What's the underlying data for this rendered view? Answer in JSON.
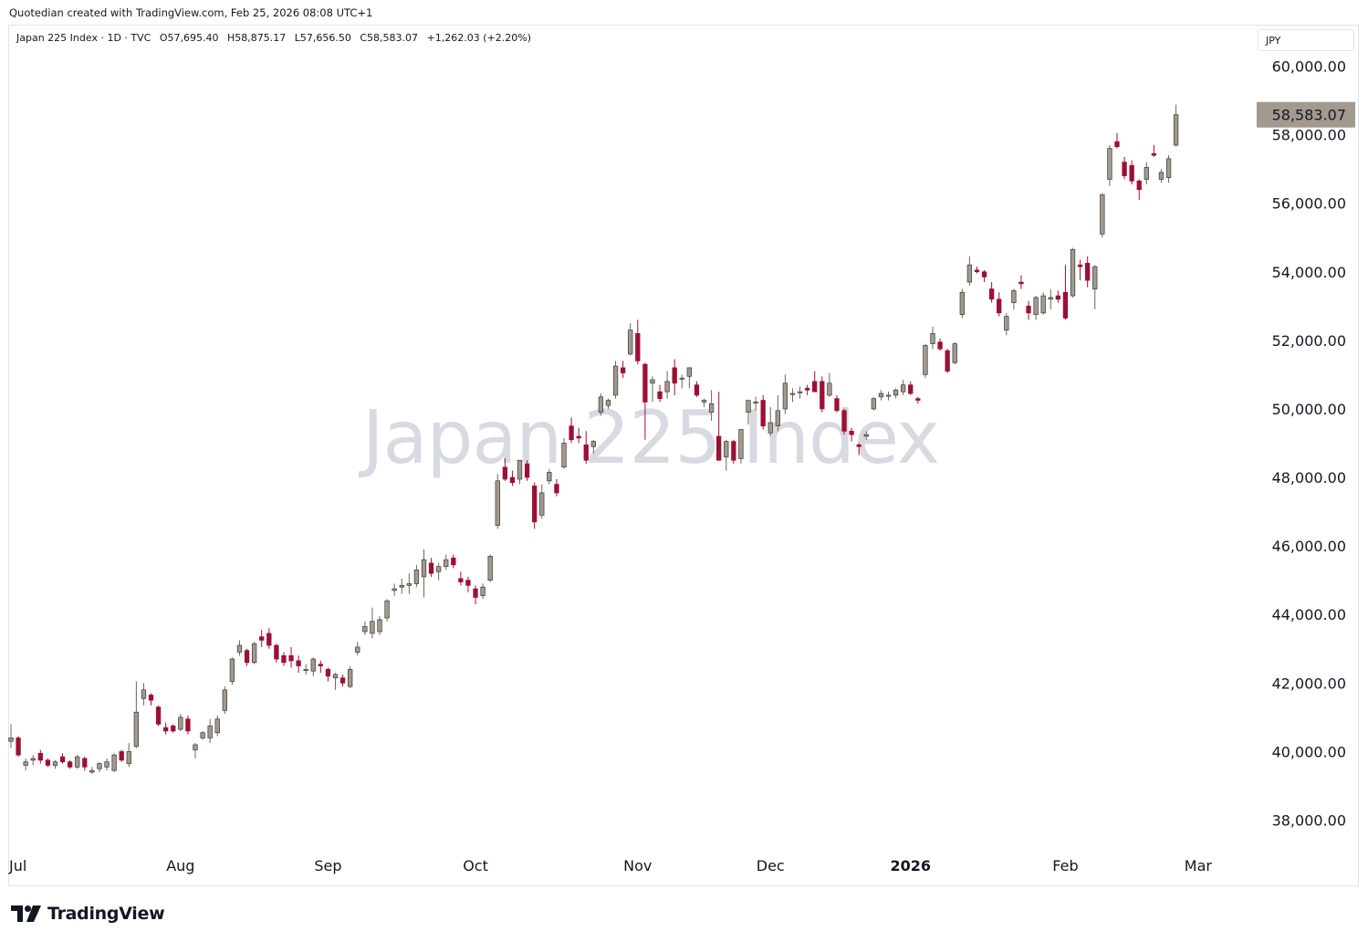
{
  "header": {
    "credit": "Quotedian created with TradingView.com, Feb 25, 2026 08:08 UTC+1"
  },
  "legend": {
    "symbol": "Japan 225 Index · 1D · TVC",
    "open": "O57,695.40",
    "high": "H58,875.17",
    "low": "L57,656.50",
    "close": "C58,583.07",
    "change": "+1,262.03 (+2.20%)"
  },
  "currency": "JPY",
  "watermark": "Japan 225 Index",
  "brand": {
    "name": "TradingView"
  },
  "colors": {
    "up": "#a29a8f",
    "down": "#9c1033",
    "last_price_bg": "#a29a8f",
    "axis_text": "#131722"
  },
  "chart_data": {
    "type": "candlestick",
    "y_axis": {
      "min": 37000,
      "max": 61000,
      "ticks": [
        38000,
        40000,
        42000,
        44000,
        46000,
        48000,
        50000,
        52000,
        54000,
        56000,
        58000,
        60000
      ],
      "tick_labels": [
        "38,000.00",
        "40,000.00",
        "42,000.00",
        "44,000.00",
        "46,000.00",
        "48,000.00",
        "50,000.00",
        "52,000.00",
        "54,000.00",
        "56,000.00",
        "58,000.00",
        "60,000.00"
      ]
    },
    "x_axis": {
      "labels": [
        {
          "label": "Jul",
          "bar": 0
        },
        {
          "label": "Aug",
          "bar": 23
        },
        {
          "label": "Sep",
          "bar": 43
        },
        {
          "label": "Oct",
          "bar": 63
        },
        {
          "label": "Nov",
          "bar": 85
        },
        {
          "label": "Dec",
          "bar": 103
        },
        {
          "label": "2026",
          "bar": 122
        },
        {
          "label": "Feb",
          "bar": 143
        },
        {
          "label": "Mar",
          "bar": 161
        }
      ]
    },
    "last_price": {
      "value": 58583.07,
      "label": "58,583.07"
    },
    "series": [
      {
        "open": 40300,
        "high": 40800,
        "low": 40100,
        "close": 40400
      },
      {
        "open": 40400,
        "high": 40450,
        "low": 39850,
        "close": 39900
      },
      {
        "open": 39600,
        "high": 39800,
        "low": 39450,
        "close": 39700
      },
      {
        "open": 39750,
        "high": 39900,
        "low": 39600,
        "close": 39800
      },
      {
        "open": 39950,
        "high": 40050,
        "low": 39650,
        "close": 39750
      },
      {
        "open": 39750,
        "high": 39800,
        "low": 39550,
        "close": 39600
      },
      {
        "open": 39600,
        "high": 39750,
        "low": 39500,
        "close": 39700
      },
      {
        "open": 39850,
        "high": 39950,
        "low": 39650,
        "close": 39700
      },
      {
        "open": 39700,
        "high": 39750,
        "low": 39500,
        "close": 39550
      },
      {
        "open": 39550,
        "high": 39900,
        "low": 39500,
        "close": 39850
      },
      {
        "open": 39800,
        "high": 39850,
        "low": 39450,
        "close": 39550
      },
      {
        "open": 39400,
        "high": 39550,
        "low": 39350,
        "close": 39450
      },
      {
        "open": 39500,
        "high": 39700,
        "low": 39400,
        "close": 39650
      },
      {
        "open": 39550,
        "high": 39800,
        "low": 39450,
        "close": 39700
      },
      {
        "open": 39450,
        "high": 39950,
        "low": 39400,
        "close": 39900
      },
      {
        "open": 40000,
        "high": 40050,
        "low": 39700,
        "close": 39750
      },
      {
        "open": 39650,
        "high": 40250,
        "low": 39550,
        "close": 40000
      },
      {
        "open": 40150,
        "high": 42050,
        "low": 40100,
        "close": 41150
      },
      {
        "open": 41550,
        "high": 42000,
        "low": 41350,
        "close": 41800
      },
      {
        "open": 41650,
        "high": 41700,
        "low": 41350,
        "close": 41500
      },
      {
        "open": 41300,
        "high": 41350,
        "low": 40750,
        "close": 40800
      },
      {
        "open": 40700,
        "high": 40850,
        "low": 40500,
        "close": 40600
      },
      {
        "open": 40750,
        "high": 40800,
        "low": 40550,
        "close": 40600
      },
      {
        "open": 40650,
        "high": 41100,
        "low": 40600,
        "close": 41000
      },
      {
        "open": 40950,
        "high": 41050,
        "low": 40500,
        "close": 40600
      },
      {
        "open": 40050,
        "high": 40250,
        "low": 39800,
        "close": 40200
      },
      {
        "open": 40400,
        "high": 40600,
        "low": 40350,
        "close": 40550
      },
      {
        "open": 40400,
        "high": 40950,
        "low": 40250,
        "close": 40750
      },
      {
        "open": 40550,
        "high": 41050,
        "low": 40450,
        "close": 40950
      },
      {
        "open": 41200,
        "high": 41900,
        "low": 41100,
        "close": 41800
      },
      {
        "open": 42050,
        "high": 42750,
        "low": 41950,
        "close": 42700
      },
      {
        "open": 42900,
        "high": 43250,
        "low": 42800,
        "close": 43100
      },
      {
        "open": 42950,
        "high": 43000,
        "low": 42500,
        "close": 42600
      },
      {
        "open": 42600,
        "high": 43200,
        "low": 42550,
        "close": 43150
      },
      {
        "open": 43350,
        "high": 43550,
        "low": 43050,
        "close": 43250
      },
      {
        "open": 43450,
        "high": 43600,
        "low": 43000,
        "close": 43100
      },
      {
        "open": 43100,
        "high": 43150,
        "low": 42600,
        "close": 42700
      },
      {
        "open": 42800,
        "high": 42900,
        "low": 42500,
        "close": 42600
      },
      {
        "open": 42800,
        "high": 43050,
        "low": 42450,
        "close": 42650
      },
      {
        "open": 42650,
        "high": 42800,
        "low": 42300,
        "close": 42500
      },
      {
        "open": 42400,
        "high": 42550,
        "low": 42250,
        "close": 42400
      },
      {
        "open": 42350,
        "high": 42750,
        "low": 42200,
        "close": 42700
      },
      {
        "open": 42550,
        "high": 42650,
        "low": 42300,
        "close": 42500
      },
      {
        "open": 42400,
        "high": 42450,
        "low": 42050,
        "close": 42200
      },
      {
        "open": 42150,
        "high": 42300,
        "low": 41800,
        "close": 42250
      },
      {
        "open": 42150,
        "high": 42250,
        "low": 41900,
        "close": 42000
      },
      {
        "open": 41900,
        "high": 42500,
        "low": 41850,
        "close": 42400
      },
      {
        "open": 42900,
        "high": 43200,
        "low": 42800,
        "close": 43050
      },
      {
        "open": 43500,
        "high": 43800,
        "low": 43400,
        "close": 43650
      },
      {
        "open": 43450,
        "high": 44200,
        "low": 43300,
        "close": 43800
      },
      {
        "open": 43500,
        "high": 43950,
        "low": 43400,
        "close": 43850
      },
      {
        "open": 43900,
        "high": 44450,
        "low": 43800,
        "close": 44400
      },
      {
        "open": 44700,
        "high": 44900,
        "low": 44550,
        "close": 44750
      },
      {
        "open": 44800,
        "high": 45050,
        "low": 44600,
        "close": 44850
      },
      {
        "open": 44850,
        "high": 45200,
        "low": 44600,
        "close": 44900
      },
      {
        "open": 44900,
        "high": 45450,
        "low": 44800,
        "close": 45300
      },
      {
        "open": 45100,
        "high": 45900,
        "low": 44500,
        "close": 45600
      },
      {
        "open": 45500,
        "high": 45650,
        "low": 45100,
        "close": 45200
      },
      {
        "open": 45250,
        "high": 45500,
        "low": 45000,
        "close": 45400
      },
      {
        "open": 45400,
        "high": 45750,
        "low": 45300,
        "close": 45600
      },
      {
        "open": 45650,
        "high": 45750,
        "low": 45350,
        "close": 45450
      },
      {
        "open": 45050,
        "high": 45250,
        "low": 44850,
        "close": 44950
      },
      {
        "open": 45000,
        "high": 45100,
        "low": 44650,
        "close": 44850
      },
      {
        "open": 44750,
        "high": 44850,
        "low": 44300,
        "close": 44500
      },
      {
        "open": 44550,
        "high": 44900,
        "low": 44450,
        "close": 44800
      },
      {
        "open": 45000,
        "high": 45750,
        "low": 44950,
        "close": 45700
      },
      {
        "open": 46600,
        "high": 48100,
        "low": 46500,
        "close": 47900
      },
      {
        "open": 48300,
        "high": 48550,
        "low": 47900,
        "close": 47950
      },
      {
        "open": 48000,
        "high": 48200,
        "low": 47750,
        "close": 47850
      },
      {
        "open": 47950,
        "high": 48500,
        "low": 47800,
        "close": 48500
      },
      {
        "open": 48400,
        "high": 48500,
        "low": 47900,
        "close": 48000
      },
      {
        "open": 47750,
        "high": 47850,
        "low": 46500,
        "close": 46700
      },
      {
        "open": 46900,
        "high": 47800,
        "low": 46800,
        "close": 47550
      },
      {
        "open": 47900,
        "high": 48250,
        "low": 47800,
        "close": 48150
      },
      {
        "open": 47800,
        "high": 47950,
        "low": 47450,
        "close": 47550
      },
      {
        "open": 48300,
        "high": 49150,
        "low": 48250,
        "close": 49000
      },
      {
        "open": 49500,
        "high": 49750,
        "low": 49000,
        "close": 49100
      },
      {
        "open": 49200,
        "high": 49450,
        "low": 49000,
        "close": 49150
      },
      {
        "open": 48950,
        "high": 49350,
        "low": 48400,
        "close": 48500
      },
      {
        "open": 48900,
        "high": 49100,
        "low": 48700,
        "close": 49050
      },
      {
        "open": 49900,
        "high": 50450,
        "low": 49800,
        "close": 50350
      },
      {
        "open": 50100,
        "high": 50300,
        "low": 50000,
        "close": 50250
      },
      {
        "open": 50400,
        "high": 51400,
        "low": 50300,
        "close": 51250
      },
      {
        "open": 51200,
        "high": 51400,
        "low": 50900,
        "close": 51050
      },
      {
        "open": 51600,
        "high": 52500,
        "low": 51550,
        "close": 52300
      },
      {
        "open": 52200,
        "high": 52600,
        "low": 51300,
        "close": 51400
      },
      {
        "open": 51300,
        "high": 51350,
        "low": 49100,
        "close": 50200
      },
      {
        "open": 50750,
        "high": 50950,
        "low": 50200,
        "close": 50850
      },
      {
        "open": 50500,
        "high": 50700,
        "low": 50200,
        "close": 50300
      },
      {
        "open": 50500,
        "high": 51100,
        "low": 50300,
        "close": 50800
      },
      {
        "open": 51200,
        "high": 51450,
        "low": 50400,
        "close": 50750
      },
      {
        "open": 50900,
        "high": 51000,
        "low": 50600,
        "close": 50900
      },
      {
        "open": 50950,
        "high": 51150,
        "low": 50600,
        "close": 51200
      },
      {
        "open": 50700,
        "high": 50800,
        "low": 50350,
        "close": 50400
      },
      {
        "open": 50200,
        "high": 50300,
        "low": 50050,
        "close": 50250
      },
      {
        "open": 49900,
        "high": 50550,
        "low": 49650,
        "close": 50150
      },
      {
        "open": 49200,
        "high": 50500,
        "low": 48700,
        "close": 48500
      },
      {
        "open": 48600,
        "high": 49100,
        "low": 48200,
        "close": 49050
      },
      {
        "open": 49050,
        "high": 49100,
        "low": 48400,
        "close": 48500
      },
      {
        "open": 48550,
        "high": 49350,
        "low": 48400,
        "close": 49400
      },
      {
        "open": 49900,
        "high": 50250,
        "low": 49550,
        "close": 50250
      },
      {
        "open": 50200,
        "high": 50350,
        "low": 49950,
        "close": 50200
      },
      {
        "open": 50250,
        "high": 50400,
        "low": 49400,
        "close": 49500
      },
      {
        "open": 49300,
        "high": 50050,
        "low": 49200,
        "close": 49600
      },
      {
        "open": 49500,
        "high": 50400,
        "low": 49350,
        "close": 49950
      },
      {
        "open": 50000,
        "high": 51000,
        "low": 49850,
        "close": 50750
      },
      {
        "open": 50450,
        "high": 50600,
        "low": 50200,
        "close": 50450
      },
      {
        "open": 50500,
        "high": 50650,
        "low": 50300,
        "close": 50500
      },
      {
        "open": 50600,
        "high": 50700,
        "low": 50400,
        "close": 50550
      },
      {
        "open": 50800,
        "high": 51100,
        "low": 50600,
        "close": 50500
      },
      {
        "open": 50800,
        "high": 50950,
        "low": 49900,
        "close": 50000
      },
      {
        "open": 50400,
        "high": 51050,
        "low": 50350,
        "close": 50750
      },
      {
        "open": 50300,
        "high": 50400,
        "low": 49900,
        "close": 49950
      },
      {
        "open": 49950,
        "high": 50000,
        "low": 49250,
        "close": 49350
      },
      {
        "open": 49350,
        "high": 49450,
        "low": 49050,
        "close": 49250
      },
      {
        "open": 48950,
        "high": 49000,
        "low": 48650,
        "close": 48900
      },
      {
        "open": 49200,
        "high": 49350,
        "low": 49100,
        "close": 49250
      },
      {
        "open": 50000,
        "high": 50350,
        "low": 49950,
        "close": 50300
      },
      {
        "open": 50350,
        "high": 50550,
        "low": 50250,
        "close": 50450
      },
      {
        "open": 50400,
        "high": 50500,
        "low": 50250,
        "close": 50400
      },
      {
        "open": 50400,
        "high": 50600,
        "low": 50300,
        "close": 50550
      },
      {
        "open": 50500,
        "high": 50850,
        "low": 50400,
        "close": 50700
      },
      {
        "open": 50700,
        "high": 50800,
        "low": 50400,
        "close": 50450
      },
      {
        "open": 50300,
        "high": 50350,
        "low": 50150,
        "close": 50250
      },
      {
        "open": 51000,
        "high": 51900,
        "low": 50900,
        "close": 51850
      },
      {
        "open": 51900,
        "high": 52400,
        "low": 51750,
        "close": 52200
      },
      {
        "open": 51950,
        "high": 52050,
        "low": 51700,
        "close": 51750
      },
      {
        "open": 51700,
        "high": 51750,
        "low": 51050,
        "close": 51100
      },
      {
        "open": 51350,
        "high": 51950,
        "low": 51300,
        "close": 51900
      },
      {
        "open": 52750,
        "high": 53500,
        "low": 52650,
        "close": 53400
      },
      {
        "open": 53700,
        "high": 54450,
        "low": 53600,
        "close": 54200
      },
      {
        "open": 54050,
        "high": 54150,
        "low": 53950,
        "close": 54000
      },
      {
        "open": 54000,
        "high": 54050,
        "low": 53700,
        "close": 53850
      },
      {
        "open": 53500,
        "high": 53700,
        "low": 53100,
        "close": 53200
      },
      {
        "open": 53200,
        "high": 53400,
        "low": 52700,
        "close": 52800
      },
      {
        "open": 52300,
        "high": 52800,
        "low": 52150,
        "close": 52700
      },
      {
        "open": 53100,
        "high": 53500,
        "low": 52900,
        "close": 53450
      },
      {
        "open": 53700,
        "high": 53900,
        "low": 53500,
        "close": 53650
      },
      {
        "open": 53000,
        "high": 53150,
        "low": 52600,
        "close": 52800
      },
      {
        "open": 52750,
        "high": 53300,
        "low": 52600,
        "close": 53250
      },
      {
        "open": 52800,
        "high": 53400,
        "low": 52750,
        "close": 53300
      },
      {
        "open": 53200,
        "high": 53500,
        "low": 52900,
        "close": 53250
      },
      {
        "open": 53300,
        "high": 53450,
        "low": 53100,
        "close": 53200
      },
      {
        "open": 53400,
        "high": 54200,
        "low": 52600,
        "close": 52650
      },
      {
        "open": 53300,
        "high": 54700,
        "low": 53250,
        "close": 54650
      },
      {
        "open": 54200,
        "high": 54350,
        "low": 53750,
        "close": 54150
      },
      {
        "open": 54250,
        "high": 54450,
        "low": 53550,
        "close": 53750
      },
      {
        "open": 53500,
        "high": 54200,
        "low": 52900,
        "close": 54150
      },
      {
        "open": 55100,
        "high": 56300,
        "low": 55000,
        "close": 56250
      },
      {
        "open": 56700,
        "high": 57700,
        "low": 56500,
        "close": 57600
      },
      {
        "open": 57800,
        "high": 58050,
        "low": 57600,
        "close": 57650
      },
      {
        "open": 57200,
        "high": 57350,
        "low": 56700,
        "close": 56800
      },
      {
        "open": 57100,
        "high": 57250,
        "low": 56550,
        "close": 56650
      },
      {
        "open": 56650,
        "high": 56700,
        "low": 56100,
        "close": 56400
      },
      {
        "open": 56700,
        "high": 57200,
        "low": 56550,
        "close": 57050
      },
      {
        "open": 57450,
        "high": 57700,
        "low": 57350,
        "close": 57400
      },
      {
        "open": 56700,
        "high": 57000,
        "low": 56600,
        "close": 56900
      },
      {
        "open": 56750,
        "high": 57400,
        "low": 56600,
        "close": 57300
      },
      {
        "open": 57695.4,
        "high": 58875.17,
        "low": 57656.5,
        "close": 58583.07
      }
    ]
  }
}
